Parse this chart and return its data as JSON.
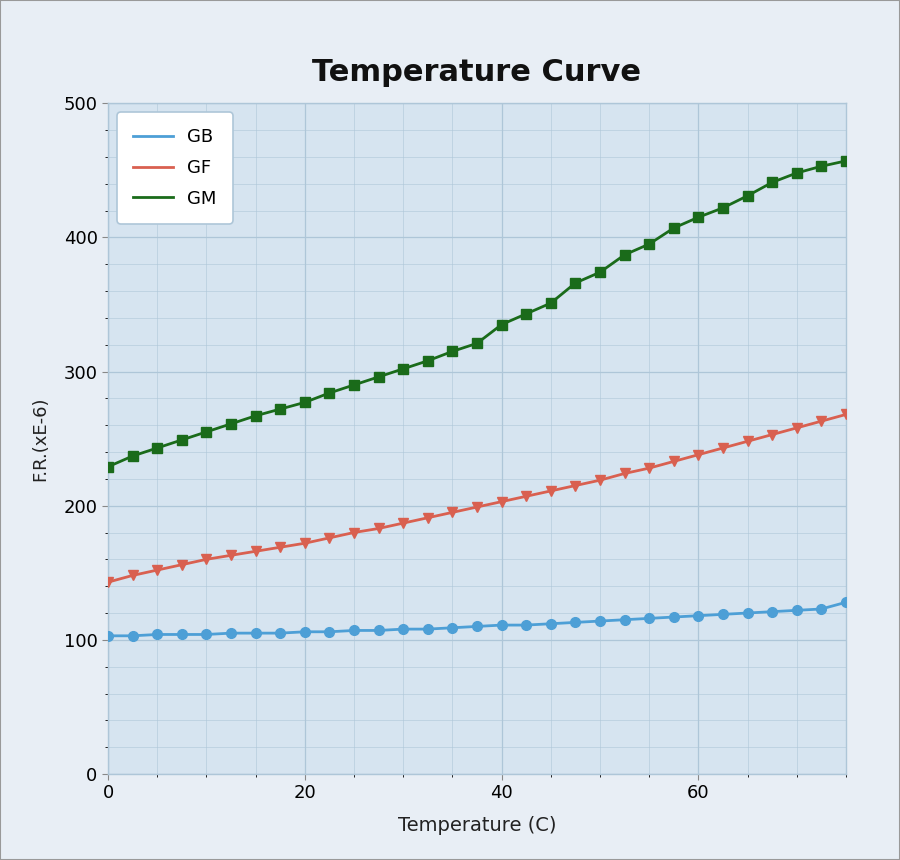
{
  "title": "Temperature Curve",
  "xlabel": "Temperature (C)",
  "ylabel": "F.R.(xE-6)",
  "bg_color": "#cddaea",
  "outer_bg": "#e8eef5",
  "plot_bg": "#d6e4f0",
  "xlim": [
    0,
    75
  ],
  "ylim": [
    0,
    500
  ],
  "xticks": [
    0,
    20,
    40,
    60
  ],
  "yticks": [
    0,
    100,
    200,
    300,
    400,
    500
  ],
  "series": {
    "GB": {
      "color": "#4d9fd6",
      "marker": "o",
      "x": [
        0,
        2.5,
        5,
        7.5,
        10,
        12.5,
        15,
        17.5,
        20,
        22.5,
        25,
        27.5,
        30,
        32.5,
        35,
        37.5,
        40,
        42.5,
        45,
        47.5,
        50,
        52.5,
        55,
        57.5,
        60,
        62.5,
        65,
        67.5,
        70,
        72.5,
        75
      ],
      "y": [
        103,
        103,
        104,
        104,
        104,
        105,
        105,
        105,
        106,
        106,
        107,
        107,
        108,
        108,
        109,
        110,
        111,
        111,
        112,
        113,
        114,
        115,
        116,
        117,
        118,
        119,
        120,
        121,
        122,
        123,
        128
      ]
    },
    "GF": {
      "color": "#d96050",
      "marker": "v",
      "x": [
        0,
        2.5,
        5,
        7.5,
        10,
        12.5,
        15,
        17.5,
        20,
        22.5,
        25,
        27.5,
        30,
        32.5,
        35,
        37.5,
        40,
        42.5,
        45,
        47.5,
        50,
        52.5,
        55,
        57.5,
        60,
        62.5,
        65,
        67.5,
        70,
        72.5,
        75
      ],
      "y": [
        143,
        148,
        152,
        156,
        160,
        163,
        166,
        169,
        172,
        176,
        180,
        183,
        187,
        191,
        195,
        199,
        203,
        207,
        211,
        215,
        219,
        224,
        228,
        233,
        238,
        243,
        248,
        253,
        258,
        263,
        268
      ]
    },
    "GM": {
      "color": "#1a6b1a",
      "marker": "s",
      "x": [
        0,
        2.5,
        5,
        7.5,
        10,
        12.5,
        15,
        17.5,
        20,
        22.5,
        25,
        27.5,
        30,
        32.5,
        35,
        37.5,
        40,
        42.5,
        45,
        47.5,
        50,
        52.5,
        55,
        57.5,
        60,
        62.5,
        65,
        67.5,
        70,
        72.5,
        75
      ],
      "y": [
        229,
        237,
        243,
        249,
        255,
        261,
        267,
        272,
        277,
        284,
        290,
        296,
        302,
        308,
        315,
        321,
        335,
        343,
        351,
        366,
        374,
        387,
        395,
        407,
        415,
        422,
        431,
        441,
        448,
        453,
        457
      ]
    }
  }
}
